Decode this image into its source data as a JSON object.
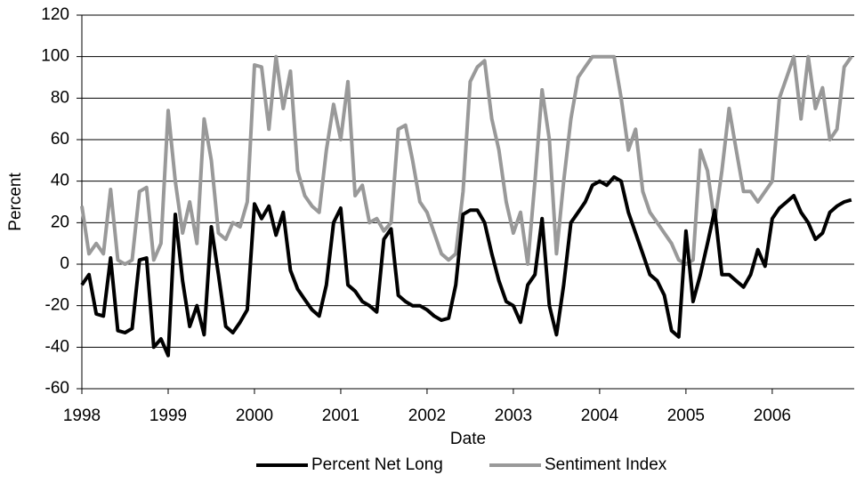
{
  "chart_data": {
    "type": "line",
    "x_label": "Date",
    "y_label": "Percent",
    "xlim": [
      1998,
      2006.95
    ],
    "xticks": [
      1998,
      1999,
      2000,
      2001,
      2002,
      2003,
      2004,
      2005,
      2006
    ],
    "ylim": [
      -60,
      120
    ],
    "yticks": [
      -60,
      -40,
      -20,
      0,
      20,
      40,
      60,
      80,
      100,
      120
    ],
    "grid": true,
    "legend": "bottom",
    "x": [
      1998,
      1998.083,
      1998.167,
      1998.25,
      1998.333,
      1998.417,
      1998.5,
      1998.583,
      1998.667,
      1998.75,
      1998.833,
      1998.917,
      1999,
      1999.083,
      1999.167,
      1999.25,
      1999.333,
      1999.417,
      1999.5,
      1999.583,
      1999.667,
      1999.75,
      1999.833,
      1999.917,
      2000,
      2000.083,
      2000.167,
      2000.25,
      2000.333,
      2000.417,
      2000.5,
      2000.583,
      2000.667,
      2000.75,
      2000.833,
      2000.917,
      2001,
      2001.083,
      2001.167,
      2001.25,
      2001.333,
      2001.417,
      2001.5,
      2001.583,
      2001.667,
      2001.75,
      2001.833,
      2001.917,
      2002,
      2002.083,
      2002.167,
      2002.25,
      2002.333,
      2002.417,
      2002.5,
      2002.583,
      2002.667,
      2002.75,
      2002.833,
      2002.917,
      2003,
      2003.083,
      2003.167,
      2003.25,
      2003.333,
      2003.417,
      2003.5,
      2003.583,
      2003.667,
      2003.75,
      2003.833,
      2003.917,
      2004,
      2004.083,
      2004.167,
      2004.25,
      2004.333,
      2004.417,
      2004.5,
      2004.583,
      2004.667,
      2004.75,
      2004.833,
      2004.917,
      2005,
      2005.083,
      2005.167,
      2005.25,
      2005.333,
      2005.417,
      2005.5,
      2005.583,
      2005.667,
      2005.75,
      2005.833,
      2005.917,
      2006,
      2006.083,
      2006.167,
      2006.25,
      2006.333,
      2006.417,
      2006.5,
      2006.583,
      2006.667,
      2006.75,
      2006.833,
      2006.917
    ],
    "series": [
      {
        "name": "Percent Net Long",
        "color": "#000000",
        "values": [
          -10,
          -5,
          -24,
          -25,
          3,
          -32,
          -33,
          -31,
          2,
          3,
          -40,
          -36,
          -44,
          24,
          -8,
          -30,
          -20,
          -34,
          18,
          -5,
          -30,
          -33,
          -28,
          -22,
          29,
          22,
          28,
          14,
          25,
          -3,
          -12,
          -17,
          -22,
          -25,
          -10,
          20,
          27,
          -10,
          -13,
          -18,
          -20,
          -23,
          12,
          17,
          -15,
          -18,
          -20,
          -20,
          -22,
          -25,
          -27,
          -26,
          -10,
          24,
          26,
          26,
          20,
          5,
          -8,
          -18,
          -20,
          -28,
          -10,
          -5,
          22,
          -20,
          -34,
          -10,
          20,
          25,
          30,
          38,
          40,
          38,
          42,
          40,
          25,
          15,
          5,
          -5,
          -8,
          -15,
          -32,
          -35,
          16,
          -18,
          -5,
          10,
          26,
          -5,
          -5,
          -8,
          -11,
          -5,
          7,
          -1,
          22,
          27,
          30,
          33,
          25,
          20,
          12,
          15,
          25,
          28,
          30,
          31
        ]
      },
      {
        "name": "Sentiment Index",
        "color": "#999999",
        "values": [
          28,
          5,
          10,
          5,
          36,
          2,
          0,
          2,
          35,
          37,
          2,
          10,
          74,
          40,
          15,
          30,
          10,
          70,
          50,
          15,
          12,
          20,
          18,
          30,
          96,
          95,
          65,
          100,
          75,
          93,
          45,
          33,
          28,
          25,
          55,
          77,
          60,
          88,
          33,
          38,
          20,
          22,
          16,
          20,
          65,
          67,
          50,
          30,
          25,
          15,
          5,
          2,
          5,
          35,
          88,
          95,
          98,
          70,
          55,
          30,
          15,
          25,
          0,
          40,
          84,
          60,
          5,
          40,
          70,
          90,
          95,
          100,
          100,
          100,
          100,
          80,
          55,
          65,
          35,
          25,
          20,
          15,
          10,
          2,
          0,
          2,
          55,
          45,
          20,
          45,
          75,
          55,
          35,
          35,
          30,
          35,
          40,
          80,
          90,
          100,
          70,
          100,
          75,
          85,
          60,
          65,
          95,
          100
        ]
      }
    ]
  }
}
